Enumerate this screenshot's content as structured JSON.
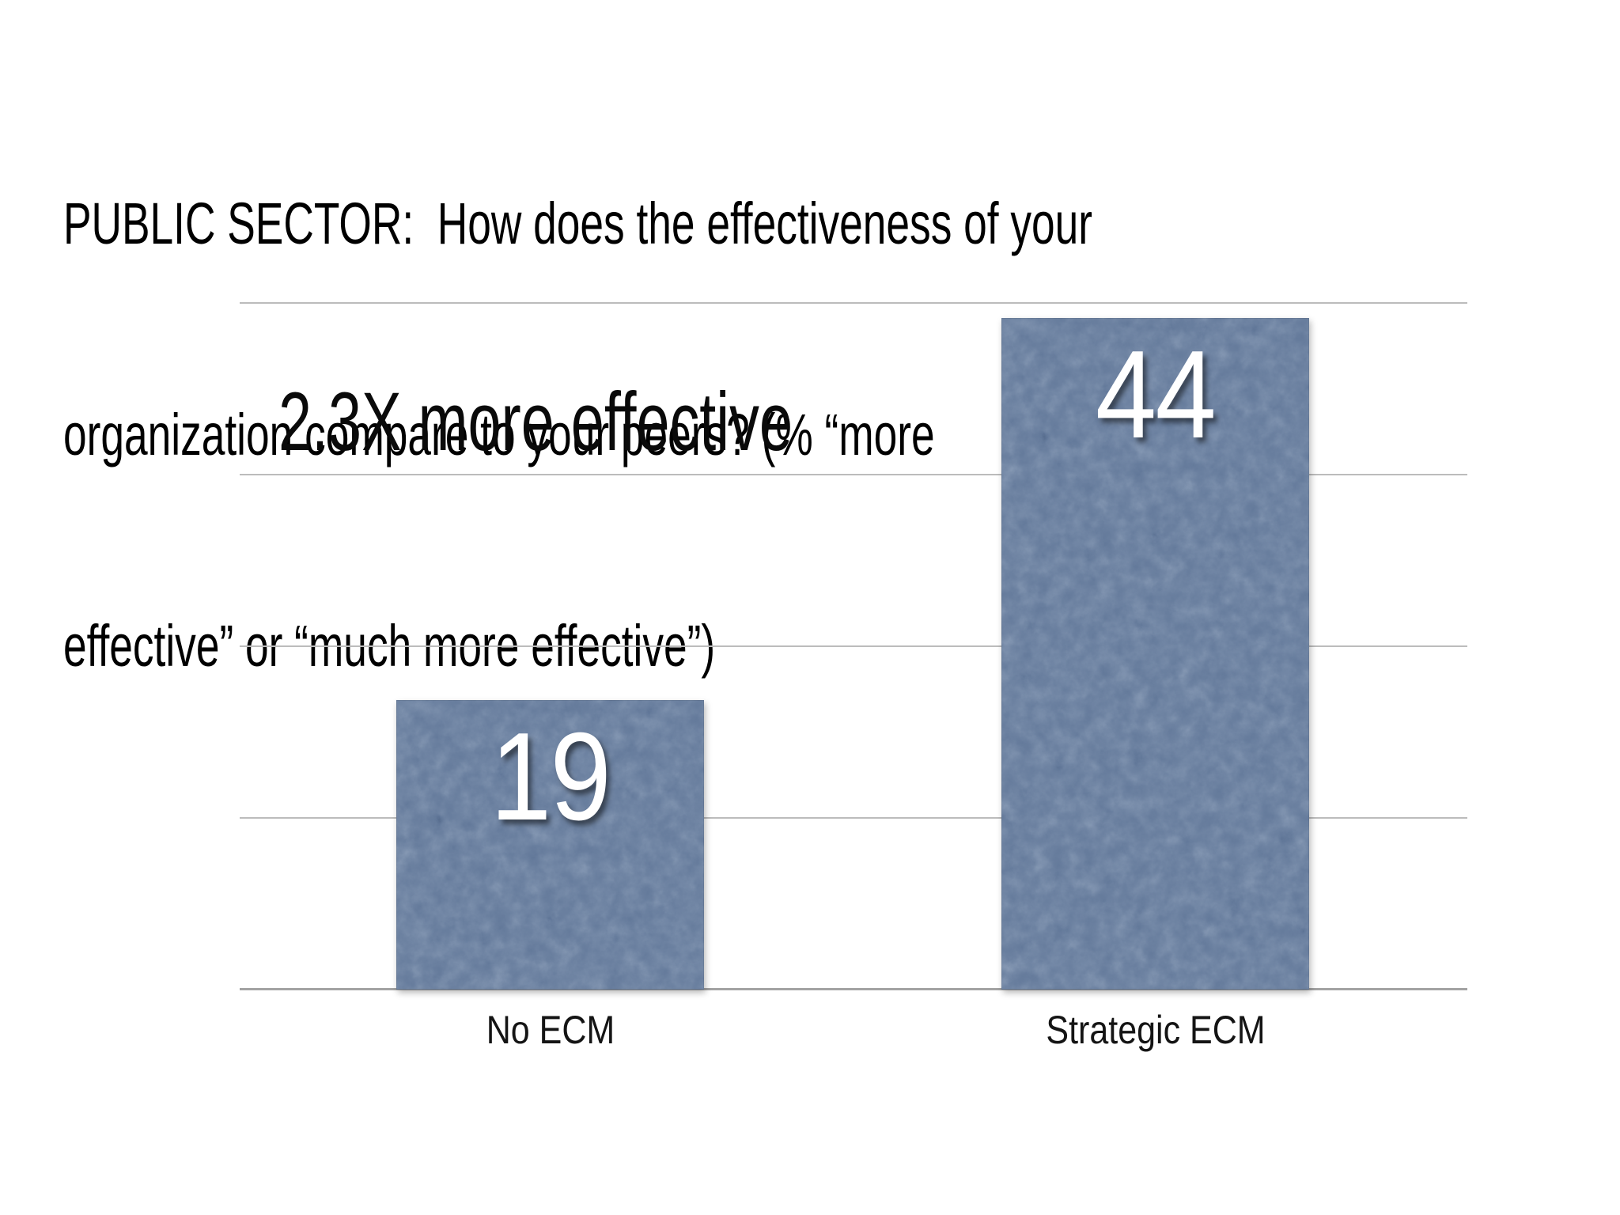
{
  "slide": {
    "title_lines": [
      "PUBLIC SECTOR:  How does the effectiveness of your",
      "organization compare to your peers? (% “more",
      "effective” or “much more effective”)"
    ]
  },
  "chart_data": {
    "type": "bar",
    "title": "PUBLIC SECTOR:  How does the effectiveness of your organization compare to your peers? (% “more effective” or “much more effective”)",
    "categories": [
      "No ECM",
      "Strategic ECM"
    ],
    "values": [
      19,
      44
    ],
    "bar_value_labels": [
      "19",
      "44"
    ],
    "annotation": "2.3X more effective",
    "xlabel": "",
    "ylabel": "",
    "ylim": [
      0,
      45
    ],
    "gridline_count": 5,
    "gridlines_labeled": false,
    "legend": "none",
    "colors": {
      "background": "#ffffff",
      "bar_fill": "#63799a",
      "bar_value_text": "#ffffff",
      "gridline": "#bcbcbc",
      "baseline": "#a3a3a3",
      "text": "#000000"
    }
  }
}
